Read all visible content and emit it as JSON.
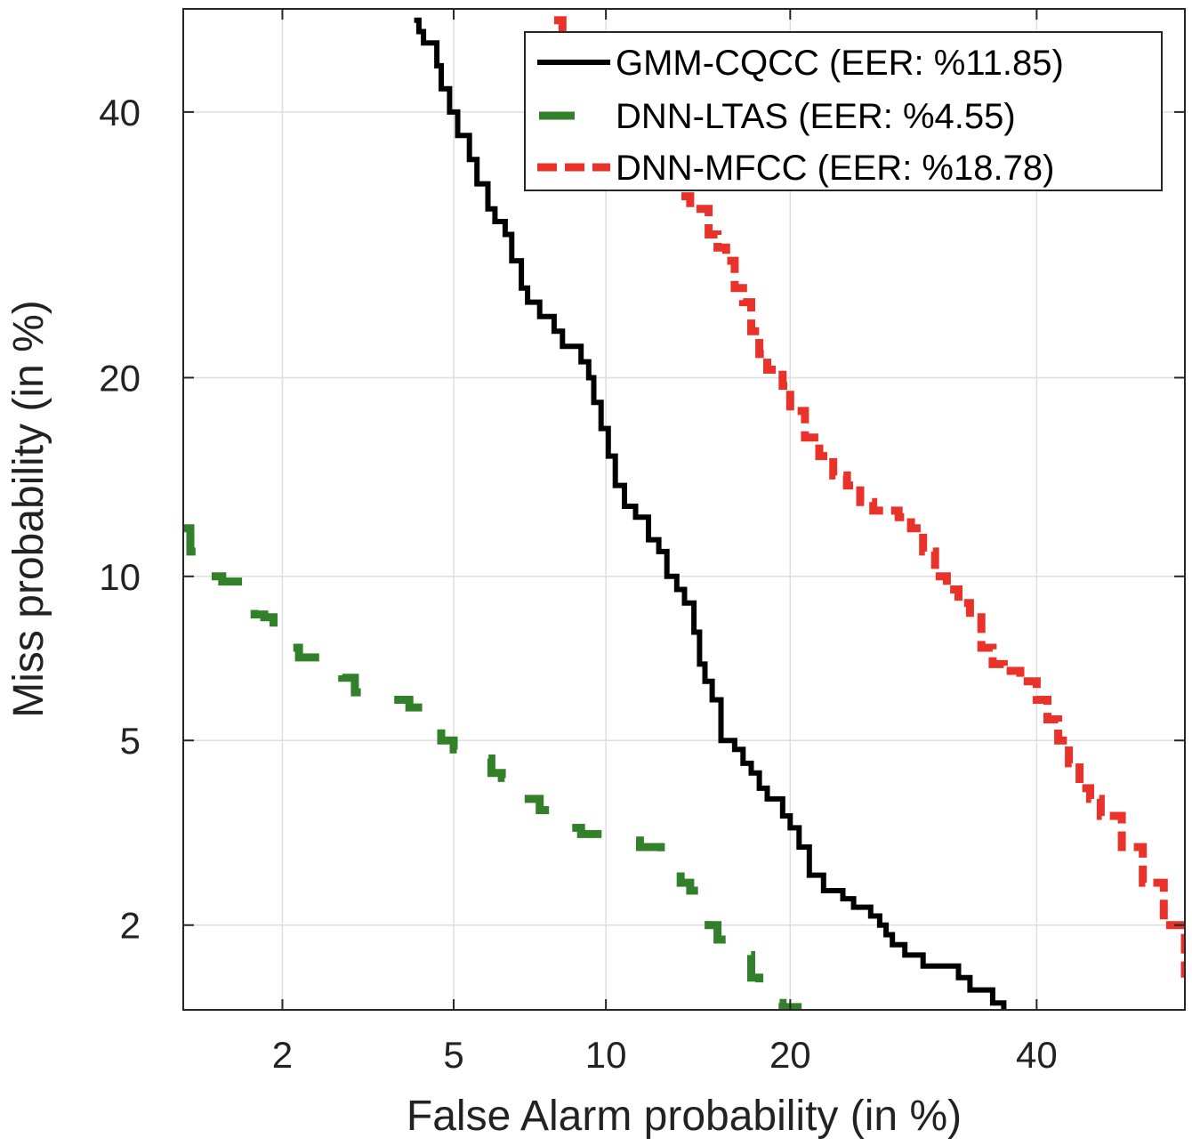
{
  "chart_data": {
    "type": "line",
    "chart_kind": "DET curve",
    "xlabel": "False Alarm probability (in %)",
    "ylabel": "Miss probability (in %)",
    "x_scale": "probit",
    "y_scale": "probit",
    "xlim": [
      1.1,
      54
    ],
    "ylim": [
      1.25,
      49
    ],
    "x_ticks": [
      2,
      5,
      10,
      20,
      40
    ],
    "y_ticks": [
      2,
      5,
      10,
      20,
      40
    ],
    "x_tick_labels": [
      "2",
      "5",
      "10",
      "20",
      "40"
    ],
    "y_tick_labels": [
      "2",
      "5",
      "10",
      "20",
      "40"
    ],
    "grid": true,
    "legend_position": "top-right",
    "series": [
      {
        "name": "GMM-CQCC (EER: %11.85)",
        "color": "#000000",
        "dash": "solid",
        "x": [
          4.1,
          4.2,
          4.3,
          4.6,
          4.7,
          4.9,
          5.1,
          5.4,
          5.6,
          5.9,
          6.1,
          6.4,
          6.6,
          6.9,
          7.1,
          7.5,
          8.0,
          8.3,
          9.0,
          9.3,
          9.5,
          9.8,
          10.1,
          10.4,
          10.8,
          11.3,
          11.9,
          12.4,
          12.8,
          13.3,
          13.7,
          14.2,
          14.5,
          14.8,
          15.2,
          15.7,
          16.5,
          17.0,
          17.5,
          18.0,
          18.5,
          19.5,
          20.0,
          20.6,
          21.3,
          22.3,
          23.7,
          24.5,
          25.8,
          26.5,
          27.0,
          27.5,
          28.5,
          30.0,
          33.0,
          34.0,
          36.0,
          37.0
        ],
        "y": [
          48,
          47,
          46,
          44,
          42,
          40,
          38,
          36,
          34,
          32,
          31,
          30,
          28,
          26,
          25,
          24,
          23,
          22,
          21,
          20,
          18.5,
          17,
          15.5,
          14,
          13,
          12.5,
          11.5,
          11,
          10,
          9.5,
          9,
          8,
          7,
          6.5,
          6,
          5,
          4.8,
          4.5,
          4.3,
          4.0,
          3.8,
          3.5,
          3.3,
          3.0,
          2.6,
          2.4,
          2.3,
          2.2,
          2.1,
          2.0,
          1.9,
          1.8,
          1.7,
          1.6,
          1.5,
          1.4,
          1.3,
          1.25
        ]
      },
      {
        "name": "DNN-LTAS (EER: %4.55)",
        "color": "#33802a",
        "dash": "long-dash",
        "x": [
          1.1,
          1.15,
          1.25,
          1.4,
          1.6,
          1.7,
          1.8,
          1.9,
          2.0,
          2.2,
          2.5,
          2.8,
          3.0,
          3.3,
          3.6,
          4.0,
          4.3,
          4.5,
          4.7,
          5.0,
          5.5,
          6.0,
          6.3,
          6.7,
          7.0,
          7.5,
          8.0,
          8.5,
          9.0,
          10.5,
          11.5,
          12.5,
          13.0,
          13.5,
          14.0,
          14.5,
          15.0,
          15.5,
          16.0,
          17.0,
          17.5,
          18.0,
          18.5,
          19.5,
          20.5
        ],
        "y": [
          12.0,
          11.0,
          10.0,
          9.8,
          9.0,
          8.6,
          8.5,
          8.0,
          7.5,
          7.2,
          7.0,
          6.6,
          6.2,
          6.1,
          6.0,
          5.8,
          5.6,
          5.3,
          5.0,
          4.8,
          4.6,
          4.3,
          4.2,
          4.0,
          3.8,
          3.6,
          3.4,
          3.3,
          3.2,
          3.1,
          3.0,
          2.9,
          2.7,
          2.5,
          2.4,
          2.2,
          2.0,
          1.85,
          1.8,
          1.7,
          1.5,
          1.4,
          1.3,
          1.27,
          1.25
        ]
      },
      {
        "name": "DNN-MFCC (EER: %18.78)",
        "color": "#e8322a",
        "dash": "dash",
        "x": [
          8.0,
          8.3,
          8.6,
          9.0,
          9.5,
          10.0,
          10.5,
          11.0,
          11.5,
          12.0,
          12.5,
          13.0,
          13.5,
          14.0,
          15.0,
          15.5,
          16.0,
          16.5,
          17.0,
          17.5,
          18.0,
          18.5,
          19.5,
          20.0,
          21.0,
          22.0,
          23.0,
          24.0,
          25.0,
          26.0,
          28.0,
          29.0,
          30.0,
          31.0,
          32.0,
          33.0,
          34.0,
          35.0,
          36.0,
          37.0,
          38.5,
          40.0,
          41.0,
          42.0,
          43.0,
          44.0,
          45.0,
          46.0,
          48.0,
          50.0,
          52.0,
          54.0
        ],
        "y": [
          48,
          46,
          44,
          43,
          42,
          41,
          40,
          38,
          37,
          36,
          35,
          34,
          33,
          32,
          30,
          29,
          28,
          26,
          25,
          23,
          21.5,
          20.5,
          19.5,
          18,
          16.5,
          15.5,
          14.5,
          14,
          13.2,
          12.8,
          12.5,
          12,
          11,
          10,
          9.5,
          9,
          8.5,
          7.5,
          7,
          6.8,
          6.5,
          6,
          5.5,
          5,
          4.5,
          4.0,
          3.8,
          3.5,
          3.0,
          2.5,
          2.0,
          1.5
        ]
      }
    ]
  }
}
